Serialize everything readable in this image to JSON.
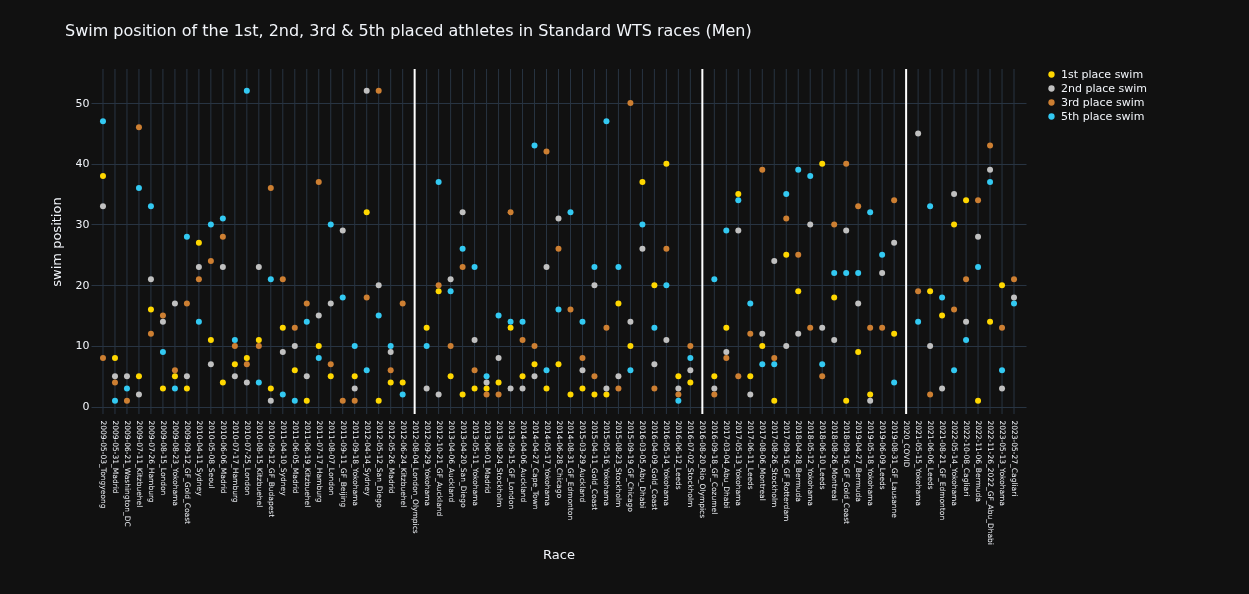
{
  "chart_data": {
    "type": "scatter",
    "title": "Swim position of the 1st, 2nd, 3rd & 5th placed athletes in Standard WTS races (Men)",
    "xlabel": "Race",
    "ylabel": "swim position",
    "categories": [
      "2009-05-03_Tongyeong",
      "2009-05-31_Madrid",
      "2009-06-21_Washington_DC",
      "2009-07-11_Kitzbuehel",
      "2009-07-26_Hamburg",
      "2009-08-15_London",
      "2009-08-23_Yokohama",
      "2009-09-12_GF_Gold_Coast",
      "2010-04-11_Sydney",
      "2010-05-08_Seoul",
      "2010-06-06_Madrid",
      "2010-07-17_Hamburg",
      "2010-07-25_London",
      "2010-08-15_Kitzbuehel",
      "2010-09-12_GF_Budapest",
      "2011-04-10_Sydney",
      "2011-06-05_Madrid",
      "2011-06-19_Kitzbuehel",
      "2011-07-17_Hamburg",
      "2011-08-07_London",
      "2011-09-11_GF_Beijing",
      "2011-09-18_Yokohama",
      "2012-04-14_Sydney",
      "2012-05-12_San_Diego",
      "2012-05-26_Madrid",
      "2012-06-24_Kitzbuehel",
      "2012-08-04_London_Olympics",
      "2012-09-29_Yokohama",
      "2012-10-21_GF_Auckland",
      "2013-04-06_Auckland",
      "2013-04-20_San_Diego",
      "2013-05-11_Yokohama",
      "2013-06-01_Madrid",
      "2013-08-24_Stockholm",
      "2013-09-15_GF_London",
      "2014-04-06_Auckland",
      "2014-04-27_Cape_Town",
      "2014-05-17_Yokohama",
      "2014-06-28_Chicago",
      "2014-08-31_GF_Edmonton",
      "2015-03-29_Auckland",
      "2015-04-11_Gold_Coast",
      "2015-05-16_Yokohama",
      "2015-08-23_Stockholm",
      "2015-09-19_GF_Chicago",
      "2016-03-05_Abu_Dhabi",
      "2016-04-09_Gold_Coast",
      "2016-05-14_Yokohama",
      "2016-06-12_Leeds",
      "2016-07-02_Stockholm",
      "2016-08-20_Rio_Olympics",
      "2016-09-18_GF_Cozumel",
      "2017-03-04_Abu_Dhabi",
      "2017-05-13_Yokohama",
      "2017-06-11_Leeds",
      "2017-08-06_Montreal",
      "2017-08-26_Stockholm",
      "2017-09-16_GF_Rotterdam",
      "2018-04-28_Bermuda",
      "2018-05-12_Yokohama",
      "2018-06-10_Leeds",
      "2018-08-26_Montreal",
      "2018-09-16_GF_Gold_Coast",
      "2019-04-27_Bermuda",
      "2019-05-18_Yokohama",
      "2019-06-09_Leeds",
      "2019-08-31_GF_Lausanne",
      "2020_COVID",
      "2021-05-15_Yokohama",
      "2021-06-06_Leeds",
      "2021-08-21_GF_Edmonton",
      "2022-05-14_Yokohama",
      "2022-10-08_Cagliari",
      "2022-11-06_Bermuda",
      "2022-11-26_2022_GF_Abu_Dhabi",
      "2023-05-13_Yokohama",
      "2023-05-27_Cagliari"
    ],
    "series": [
      {
        "name": "1st place swim",
        "color": "#ffd700",
        "values": [
          38,
          8,
          null,
          5,
          16,
          3,
          5,
          3,
          27,
          11,
          4,
          7,
          8,
          11,
          3,
          13,
          6,
          1,
          10,
          5,
          null,
          5,
          32,
          1,
          4,
          4,
          null,
          13,
          19,
          5,
          2,
          3,
          3,
          4,
          13,
          5,
          7,
          3,
          7,
          2,
          3,
          2,
          2,
          17,
          10,
          37,
          20,
          40,
          5,
          4,
          null,
          5,
          13,
          35,
          5,
          10,
          1,
          25,
          19,
          null,
          40,
          18,
          1,
          9,
          2,
          null,
          12,
          null,
          null,
          19,
          15,
          30,
          34,
          1,
          14,
          20,
          null
        ]
      },
      {
        "name": "2nd place swim",
        "color": "#c0c0c0",
        "values": [
          33,
          5,
          5,
          2,
          21,
          14,
          17,
          5,
          23,
          7,
          23,
          5,
          4,
          23,
          1,
          9,
          10,
          5,
          15,
          17,
          29,
          3,
          52,
          20,
          9,
          null,
          null,
          3,
          2,
          21,
          32,
          11,
          4,
          8,
          3,
          3,
          5,
          23,
          31,
          null,
          6,
          20,
          3,
          5,
          14,
          26,
          7,
          11,
          3,
          6,
          null,
          3,
          9,
          29,
          2,
          12,
          24,
          10,
          12,
          30,
          13,
          11,
          29,
          17,
          1,
          22,
          27,
          null,
          45,
          10,
          3,
          35,
          14,
          28,
          39,
          3,
          18
        ]
      },
      {
        "name": "3rd place swim",
        "color": "#cd7f32",
        "values": [
          8,
          4,
          1,
          46,
          12,
          15,
          6,
          17,
          21,
          24,
          28,
          10,
          7,
          10,
          36,
          21,
          13,
          17,
          37,
          7,
          1,
          1,
          18,
          52,
          6,
          17,
          null,
          null,
          20,
          10,
          23,
          6,
          2,
          2,
          32,
          11,
          10,
          42,
          26,
          16,
          8,
          5,
          13,
          3,
          50,
          null,
          3,
          26,
          2,
          10,
          null,
          2,
          8,
          5,
          12,
          39,
          8,
          31,
          25,
          13,
          5,
          30,
          40,
          33,
          13,
          13,
          34,
          null,
          19,
          2,
          null,
          16,
          21,
          34,
          43,
          13,
          21
        ]
      },
      {
        "name": "5th place swim",
        "color": "#33c9f2",
        "values": [
          47,
          1,
          3,
          36,
          33,
          9,
          3,
          28,
          14,
          30,
          31,
          11,
          52,
          4,
          21,
          2,
          1,
          14,
          8,
          30,
          18,
          10,
          6,
          15,
          10,
          2,
          null,
          10,
          37,
          19,
          26,
          23,
          5,
          15,
          14,
          14,
          43,
          6,
          16,
          32,
          14,
          23,
          47,
          23,
          6,
          30,
          13,
          20,
          1,
          8,
          null,
          21,
          29,
          34,
          17,
          7,
          7,
          35,
          39,
          38,
          7,
          22,
          22,
          22,
          32,
          25,
          4,
          null,
          14,
          33,
          18,
          6,
          11,
          23,
          37,
          6,
          17
        ]
      }
    ],
    "ylim": [
      -1.2,
      55.6
    ],
    "yticks": [
      0,
      10,
      20,
      30,
      40,
      50
    ],
    "grid": true,
    "legend": "top right",
    "marker": "circle",
    "ref_lines": [
      {
        "axis": "x",
        "value": "2012-08-04_London_Olympics",
        "color": "#ffffff"
      },
      {
        "axis": "x",
        "value": "2016-08-20_Rio_Olympics",
        "color": "#ffffff"
      },
      {
        "axis": "x",
        "value": "2020_COVID",
        "color": "#ffffff"
      }
    ]
  }
}
